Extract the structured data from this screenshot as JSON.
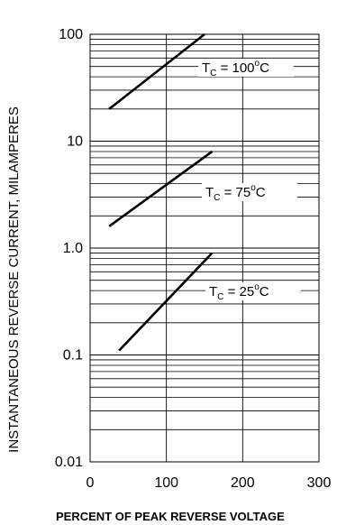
{
  "chart_data": {
    "type": "line",
    "y_scale": "log",
    "xlim": [
      0,
      300
    ],
    "ylim": [
      0.01,
      100
    ],
    "x_ticks": [
      "0",
      "100",
      "200",
      "300"
    ],
    "y_ticks": [
      "0.01",
      "0.1",
      "1.0",
      "10",
      "100"
    ],
    "xlabel": "PERCENT OF PEAK REVERSE VOLTAGE",
    "ylabel": "INSTANTANEOUS REVERSE CURRENT, MILAMPERES",
    "grid": true,
    "series": [
      {
        "name": "T_C = 100°C",
        "label_main": "T",
        "label_sub": "C",
        "label_eq": " = 100",
        "label_deg": "o",
        "label_unit": "C",
        "x": [
          25,
          150
        ],
        "y": [
          20,
          100
        ]
      },
      {
        "name": "T_C = 75°C",
        "label_main": "T",
        "label_sub": "C",
        "label_eq": " = 75",
        "label_deg": "o",
        "label_unit": "C",
        "x": [
          25,
          160
        ],
        "y": [
          1.6,
          8
        ]
      },
      {
        "name": "T_C = 25°C",
        "label_main": "T",
        "label_sub": "C",
        "label_eq": " = 25",
        "label_deg": "o",
        "label_unit": "C",
        "x": [
          38,
          160
        ],
        "y": [
          0.11,
          0.9
        ]
      }
    ]
  }
}
